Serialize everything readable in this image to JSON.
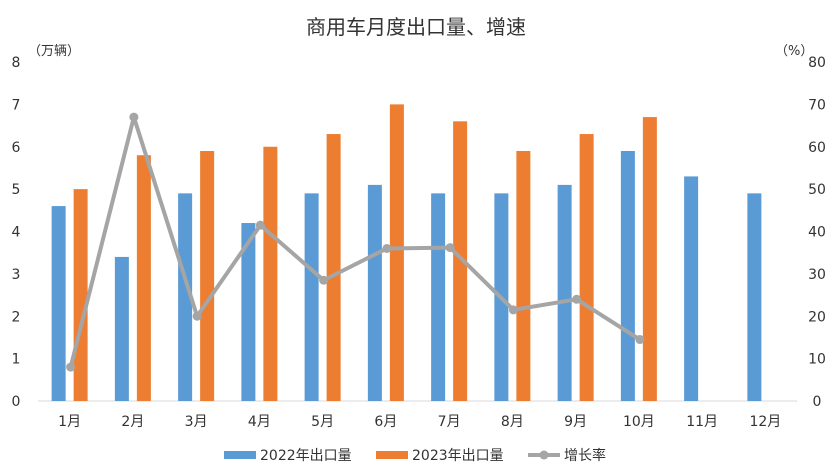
{
  "chart_data": {
    "type": "bar",
    "title": "商用车月度出口量、增速",
    "y_left_unit": "（万辆）",
    "y_right_unit": "（%）",
    "categories": [
      "1月",
      "2月",
      "3月",
      "4月",
      "5月",
      "6月",
      "7月",
      "8月",
      "9月",
      "10月",
      "11月",
      "12月"
    ],
    "ylim_left": [
      0,
      8
    ],
    "ylim_right": [
      0,
      80
    ],
    "yticks_left": [
      "0",
      "1",
      "2",
      "3",
      "4",
      "5",
      "6",
      "7",
      "8"
    ],
    "yticks_right": [
      "0",
      "10",
      "20",
      "30",
      "40",
      "50",
      "60",
      "70",
      "80"
    ],
    "grid": false,
    "legend_position": "bottom",
    "series": [
      {
        "name": "2022年出口量",
        "type": "bar",
        "axis": "left",
        "color": "#5b9bd5",
        "values": [
          4.6,
          3.4,
          4.9,
          4.2,
          4.9,
          5.1,
          4.9,
          4.9,
          5.1,
          5.9,
          5.3,
          4.9
        ]
      },
      {
        "name": "2023年出口量",
        "type": "bar",
        "axis": "left",
        "color": "#ed7d31",
        "values": [
          5.0,
          5.8,
          5.9,
          6.0,
          6.3,
          7.0,
          6.6,
          5.9,
          6.3,
          6.7,
          null,
          null
        ]
      },
      {
        "name": "增长率",
        "type": "line",
        "axis": "right",
        "color": "#a5a5a5",
        "values": [
          8,
          67,
          20,
          41.5,
          28.5,
          36,
          36.2,
          21.5,
          24,
          14.5,
          null,
          null
        ]
      }
    ]
  }
}
